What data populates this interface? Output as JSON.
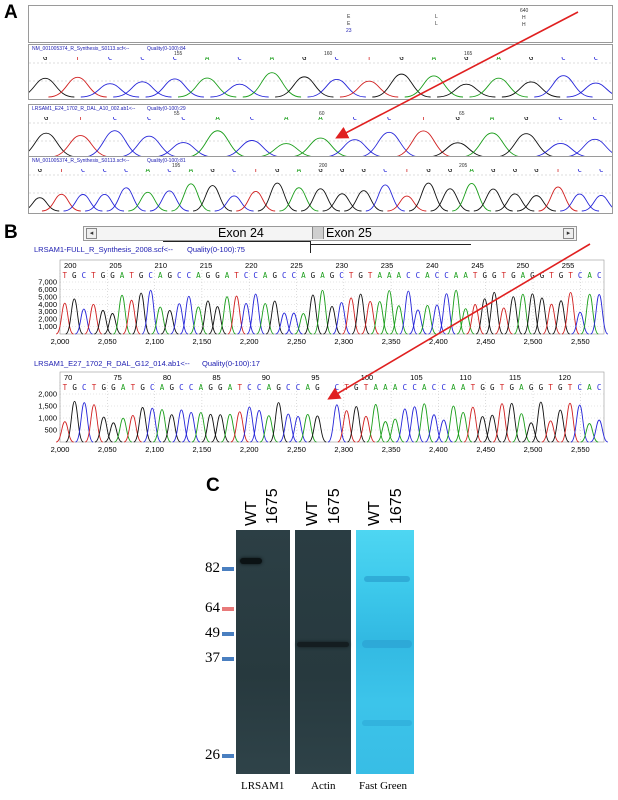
{
  "panels": {
    "a": {
      "letter": "A",
      "header_marks": [
        "E",
        "E",
        "23",
        "L",
        "L",
        "640",
        "H",
        "H"
      ],
      "traces": [
        {
          "title": "NM_001005374_R_Synthesis_S0113.scf<--",
          "quality": "Quality(0-100):84",
          "ticks": [
            "155",
            "160",
            "165"
          ]
        },
        {
          "title": "LRSAM1_E24_1702_R_DAL_A10_002.ab1<--",
          "quality": "Quality(0-100):29",
          "ticks": [
            "55",
            "60",
            "65"
          ]
        },
        {
          "title": "NM_001005374_R_Synthesis_S0113.scf<--",
          "quality": "Quality(0-100):81",
          "ticks": [
            "195",
            "200",
            "205"
          ]
        }
      ]
    },
    "b": {
      "letter": "B",
      "exon_left": "Exon 24",
      "exon_right": "Exon 25",
      "trace1": {
        "title": "LRSAM1-FULL_R_Synthesis_2008.scf<--",
        "quality": "Quality(0-100):75",
        "position_ticks": [
          "200",
          "205",
          "210",
          "215",
          "220",
          "225",
          "230",
          "235",
          "240",
          "245",
          "250",
          "255"
        ],
        "sequence": "TGCTGGATGCAGCCAGGATCCAGCCAGAGCTGTAAACCACCAATGGTGAGGTGTCAC",
        "y_ticks": [
          "7,000",
          "6,000",
          "5,000",
          "4,000",
          "3,000",
          "2,000",
          "1,000"
        ],
        "x_ticks": [
          "2,000",
          "2,050",
          "2,100",
          "2,150",
          "2,200",
          "2,250",
          "2,300",
          "2,350",
          "2,400",
          "2,450",
          "2,500",
          "2,550"
        ]
      },
      "trace2": {
        "title": "LRSAM1_E27_1702_R_DAL_G12_014.ab1<--",
        "quality": "Quality(0-100):17",
        "position_ticks": [
          "70",
          "75",
          "80",
          "85",
          "90",
          "95",
          "100",
          "105",
          "110",
          "115",
          "120"
        ],
        "sequence": "TGCTGGATGCAGCCAGGATCCAGCCAG-CTGTAAACCACCAATGGTGAGGTGTCAC",
        "y_ticks": [
          "2,000",
          "1,500",
          "1,000",
          "500"
        ],
        "x_ticks": [
          "2,000",
          "2,050",
          "2,100",
          "2,150",
          "2,200",
          "2,250",
          "2,300",
          "2,350",
          "2,400",
          "2,450",
          "2,500",
          "2,550"
        ]
      }
    },
    "c": {
      "letter": "C",
      "lane_labels": [
        "WT",
        "1675",
        "WT",
        "1675",
        "WT",
        "1675"
      ],
      "markers": [
        "82",
        "64",
        "49",
        "37",
        "26"
      ],
      "blot_captions": [
        "LRSAM1",
        "Actin",
        "Fast Green"
      ]
    }
  },
  "colors": {
    "base_A": "#1a9e1a",
    "base_C": "#2626d9",
    "base_G": "#111111",
    "base_T": "#d12020",
    "arrow": "#e02020",
    "marker_blue": "#4a7fc0",
    "marker_red": "#e87a7a",
    "blot_dark": "#27393e",
    "fast_green": "#3fd0ef"
  }
}
